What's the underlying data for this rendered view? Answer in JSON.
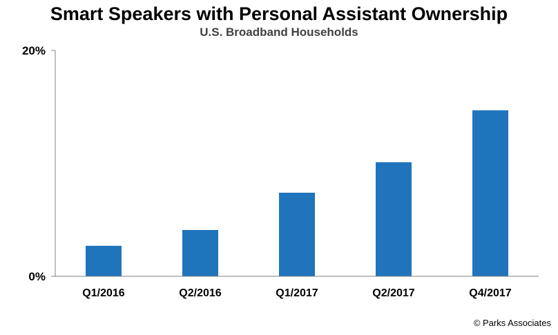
{
  "chart_data": {
    "type": "bar",
    "title": "Smart Speakers with Personal Assistant Ownership",
    "subtitle": "U.S. Broadband Households",
    "categories": [
      "Q1/2016",
      "Q2/2016",
      "Q1/2017",
      "Q2/2017",
      "Q4/2017"
    ],
    "values": [
      2.7,
      4.1,
      7.4,
      10.1,
      14.7
    ],
    "ylim": [
      0,
      20
    ],
    "y_ticks": [
      "0%",
      "20%"
    ],
    "y_tick_values": [
      0,
      20
    ],
    "xlabel": "",
    "ylabel": "",
    "grid": false,
    "bar_color": "#1F74BC"
  },
  "source": "© Parks Associates"
}
